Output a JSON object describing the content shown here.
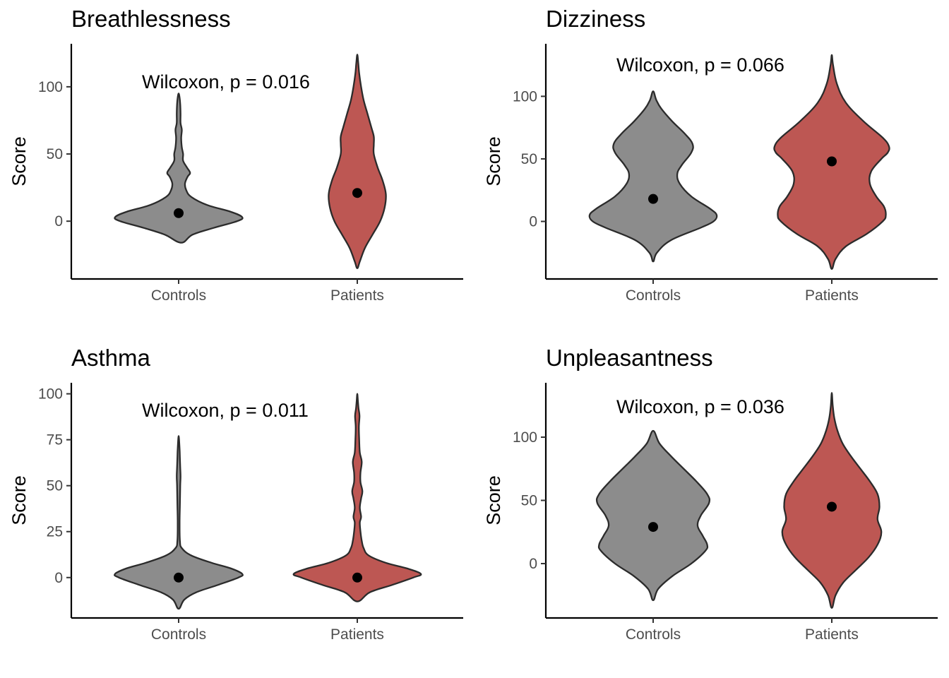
{
  "chart_data": [
    {
      "type": "violin",
      "title": "Breathlessness",
      "xlabel": "",
      "ylabel": "Score",
      "categories": [
        "Controls",
        "Patients"
      ],
      "ylim": [
        -43,
        132
      ],
      "yticks": [
        0,
        50,
        100
      ],
      "annotation": "Wilcoxon, p = 0.016",
      "point_values": [
        6,
        21
      ],
      "fill_colors": [
        "#8c8c8c",
        "#bd5753"
      ],
      "density": [
        [
          [
            -16,
            0.04
          ],
          [
            -10,
            0.22
          ],
          [
            -5,
            0.55
          ],
          [
            0,
            0.92
          ],
          [
            3,
            1.0
          ],
          [
            7,
            0.82
          ],
          [
            12,
            0.45
          ],
          [
            18,
            0.2
          ],
          [
            23,
            0.12
          ],
          [
            28,
            0.1
          ],
          [
            33,
            0.14
          ],
          [
            36,
            0.18
          ],
          [
            40,
            0.13
          ],
          [
            45,
            0.07
          ],
          [
            50,
            0.07
          ],
          [
            55,
            0.05
          ],
          [
            62,
            0.04
          ],
          [
            68,
            0.05
          ],
          [
            73,
            0.03
          ],
          [
            80,
            0.03
          ],
          [
            87,
            0.025
          ],
          [
            92,
            0.015
          ],
          [
            95,
            0.0
          ]
        ],
        [
          [
            -35,
            0.0
          ],
          [
            -30,
            0.04
          ],
          [
            -20,
            0.12
          ],
          [
            -10,
            0.24
          ],
          [
            0,
            0.36
          ],
          [
            10,
            0.43
          ],
          [
            20,
            0.45
          ],
          [
            30,
            0.4
          ],
          [
            40,
            0.32
          ],
          [
            50,
            0.26
          ],
          [
            57,
            0.26
          ],
          [
            63,
            0.26
          ],
          [
            70,
            0.22
          ],
          [
            80,
            0.16
          ],
          [
            90,
            0.1
          ],
          [
            100,
            0.06
          ],
          [
            110,
            0.03
          ],
          [
            118,
            0.015
          ],
          [
            124,
            0.0
          ]
        ]
      ]
    },
    {
      "type": "violin",
      "title": "Dizziness",
      "xlabel": "",
      "ylabel": "Score",
      "categories": [
        "Controls",
        "Patients"
      ],
      "ylim": [
        -46,
        142
      ],
      "yticks": [
        0,
        50,
        100
      ],
      "annotation": "Wilcoxon, p = 0.066",
      "point_values": [
        18,
        48
      ],
      "fill_colors": [
        "#8c8c8c",
        "#bd5753"
      ],
      "density": [
        [
          [
            -32,
            0.0
          ],
          [
            -25,
            0.06
          ],
          [
            -15,
            0.28
          ],
          [
            -5,
            0.75
          ],
          [
            0,
            0.95
          ],
          [
            5,
            1.0
          ],
          [
            10,
            0.9
          ],
          [
            20,
            0.6
          ],
          [
            30,
            0.42
          ],
          [
            38,
            0.38
          ],
          [
            45,
            0.45
          ],
          [
            55,
            0.6
          ],
          [
            62,
            0.62
          ],
          [
            70,
            0.5
          ],
          [
            80,
            0.3
          ],
          [
            90,
            0.13
          ],
          [
            97,
            0.05
          ],
          [
            104,
            0.0
          ]
        ],
        [
          [
            -38,
            0.0
          ],
          [
            -30,
            0.06
          ],
          [
            -20,
            0.22
          ],
          [
            -10,
            0.55
          ],
          [
            0,
            0.8
          ],
          [
            5,
            0.85
          ],
          [
            12,
            0.82
          ],
          [
            20,
            0.7
          ],
          [
            30,
            0.6
          ],
          [
            40,
            0.62
          ],
          [
            50,
            0.78
          ],
          [
            55,
            0.88
          ],
          [
            60,
            0.9
          ],
          [
            67,
            0.8
          ],
          [
            80,
            0.5
          ],
          [
            95,
            0.22
          ],
          [
            110,
            0.08
          ],
          [
            125,
            0.02
          ],
          [
            133,
            0.0
          ]
        ]
      ]
    },
    {
      "type": "violin",
      "title": "Asthma",
      "xlabel": "",
      "ylabel": "Score",
      "categories": [
        "Controls",
        "Patients"
      ],
      "ylim": [
        -22,
        106
      ],
      "yticks": [
        0,
        25,
        50,
        75,
        100
      ],
      "annotation": "Wilcoxon, p = 0.011",
      "point_values": [
        0,
        0
      ],
      "fill_colors": [
        "#8c8c8c",
        "#bd5753"
      ],
      "density": [
        [
          [
            -17,
            0.0
          ],
          [
            -12,
            0.09
          ],
          [
            -8,
            0.28
          ],
          [
            -4,
            0.62
          ],
          [
            0,
            0.94
          ],
          [
            2,
            1.0
          ],
          [
            5,
            0.82
          ],
          [
            8,
            0.52
          ],
          [
            12,
            0.2
          ],
          [
            16,
            0.05
          ],
          [
            20,
            0.02
          ],
          [
            30,
            0.015
          ],
          [
            40,
            0.02
          ],
          [
            50,
            0.025
          ],
          [
            55,
            0.03
          ],
          [
            60,
            0.025
          ],
          [
            65,
            0.02
          ],
          [
            70,
            0.015
          ],
          [
            77,
            0.0
          ]
        ],
        [
          [
            -13,
            0.0
          ],
          [
            -8,
            0.2
          ],
          [
            -4,
            0.55
          ],
          [
            0,
            0.88
          ],
          [
            2,
            1.0
          ],
          [
            5,
            0.78
          ],
          [
            8,
            0.45
          ],
          [
            12,
            0.18
          ],
          [
            16,
            0.1
          ],
          [
            20,
            0.07
          ],
          [
            25,
            0.05
          ],
          [
            30,
            0.04
          ],
          [
            33,
            0.06
          ],
          [
            38,
            0.04
          ],
          [
            43,
            0.06
          ],
          [
            47,
            0.08
          ],
          [
            52,
            0.05
          ],
          [
            57,
            0.05
          ],
          [
            63,
            0.07
          ],
          [
            68,
            0.04
          ],
          [
            75,
            0.03
          ],
          [
            82,
            0.025
          ],
          [
            88,
            0.035
          ],
          [
            92,
            0.02
          ],
          [
            96,
            0.01
          ],
          [
            100,
            0.0
          ]
        ]
      ]
    },
    {
      "type": "violin",
      "title": "Unpleasantness",
      "xlabel": "",
      "ylabel": "Score",
      "categories": [
        "Controls",
        "Patients"
      ],
      "ylim": [
        -43,
        143
      ],
      "yticks": [
        0,
        50,
        100
      ],
      "annotation": "Wilcoxon, p = 0.036",
      "point_values": [
        29,
        45
      ],
      "fill_colors": [
        "#8c8c8c",
        "#bd5753"
      ],
      "density": [
        [
          [
            -29,
            0.0
          ],
          [
            -20,
            0.08
          ],
          [
            -10,
            0.3
          ],
          [
            0,
            0.6
          ],
          [
            10,
            0.82
          ],
          [
            15,
            0.85
          ],
          [
            22,
            0.78
          ],
          [
            30,
            0.7
          ],
          [
            38,
            0.75
          ],
          [
            48,
            0.88
          ],
          [
            55,
            0.85
          ],
          [
            65,
            0.68
          ],
          [
            75,
            0.48
          ],
          [
            85,
            0.28
          ],
          [
            95,
            0.1
          ],
          [
            105,
            0.0
          ]
        ],
        [
          [
            -35,
            0.0
          ],
          [
            -25,
            0.06
          ],
          [
            -15,
            0.18
          ],
          [
            -5,
            0.38
          ],
          [
            5,
            0.58
          ],
          [
            15,
            0.72
          ],
          [
            25,
            0.78
          ],
          [
            35,
            0.72
          ],
          [
            45,
            0.75
          ],
          [
            55,
            0.72
          ],
          [
            65,
            0.6
          ],
          [
            75,
            0.45
          ],
          [
            85,
            0.3
          ],
          [
            95,
            0.17
          ],
          [
            105,
            0.09
          ],
          [
            115,
            0.04
          ],
          [
            125,
            0.015
          ],
          [
            135,
            0.0
          ]
        ]
      ]
    }
  ]
}
